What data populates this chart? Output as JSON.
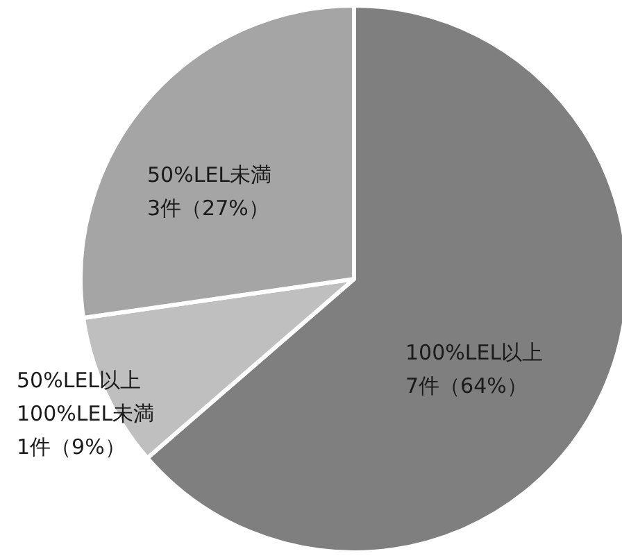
{
  "chart_data": {
    "type": "pie",
    "categories": [
      "100%LEL以上",
      "50%LEL以上100%LEL未満",
      "50%LEL未満"
    ],
    "values": [
      7,
      1,
      3
    ],
    "value_labels": [
      "7件（64%）",
      "1件（9%）",
      "3件（27%）"
    ],
    "colors": [
      "#7f7f7f",
      "#bfbfbf",
      "#a5a5a5"
    ]
  }
}
